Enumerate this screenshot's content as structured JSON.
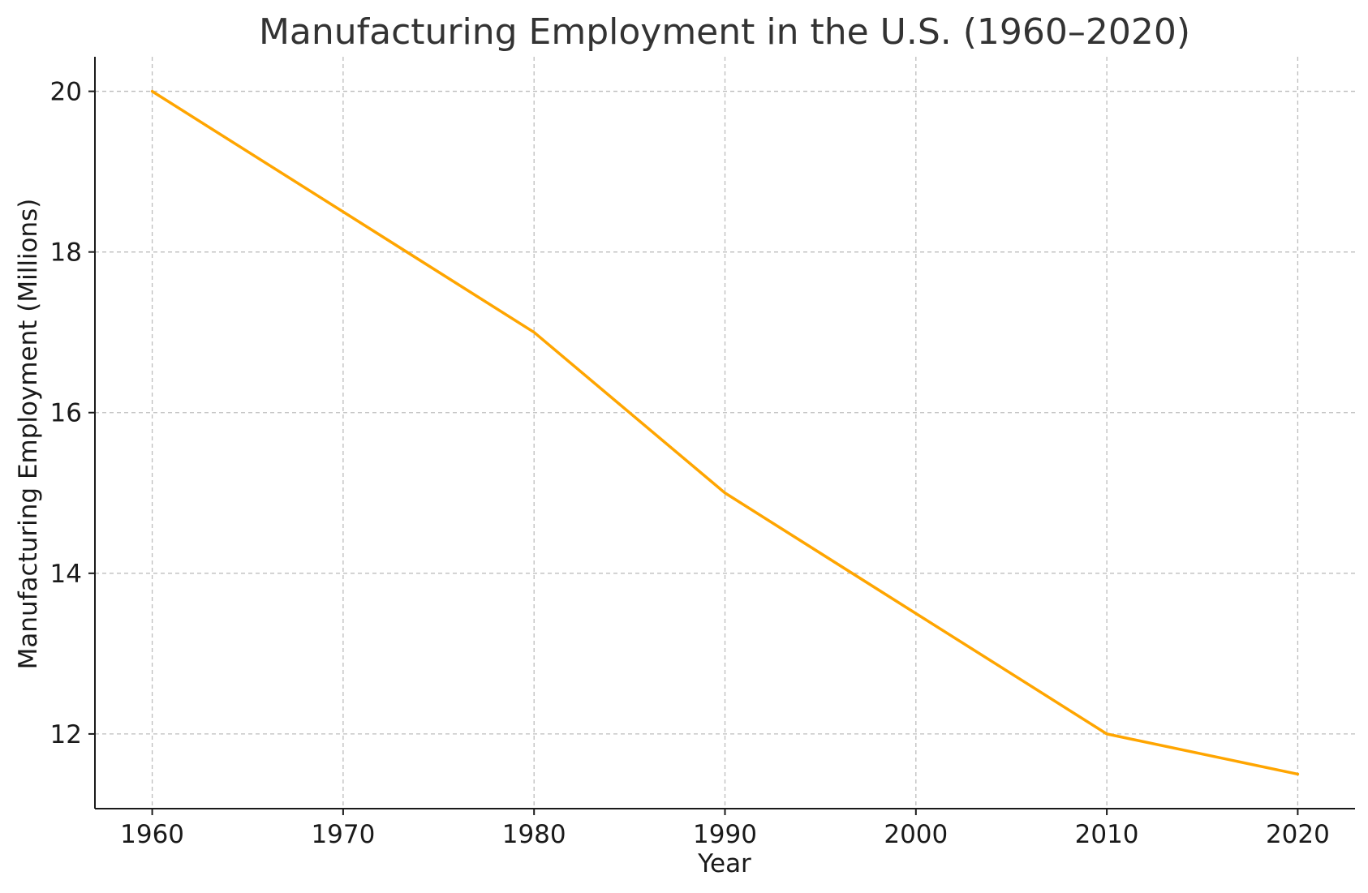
{
  "chart_data": {
    "type": "line",
    "title": "Manufacturing Employment in the U.S. (1960–2020)",
    "xlabel": "Year",
    "ylabel": "Manufacturing Employment (Millions)",
    "x": [
      1960,
      1970,
      1980,
      1990,
      2000,
      2010,
      2020
    ],
    "series": [
      {
        "values": [
          20,
          18.5,
          17,
          15,
          13.5,
          12,
          11.5
        ],
        "color": "#FFA500"
      }
    ],
    "xlim": [
      1957,
      2023
    ],
    "ylim": [
      11.07,
      20.43
    ],
    "xticks": [
      1960,
      1970,
      1980,
      1990,
      2000,
      2010,
      2020
    ],
    "xtick_labels": [
      "1960",
      "1970",
      "1980",
      "1990",
      "2000",
      "2010",
      "2020"
    ],
    "yticks": [
      12,
      14,
      16,
      18,
      20
    ],
    "ytick_labels": [
      "12",
      "14",
      "16",
      "18",
      "20"
    ],
    "grid": true,
    "legend": "none"
  }
}
